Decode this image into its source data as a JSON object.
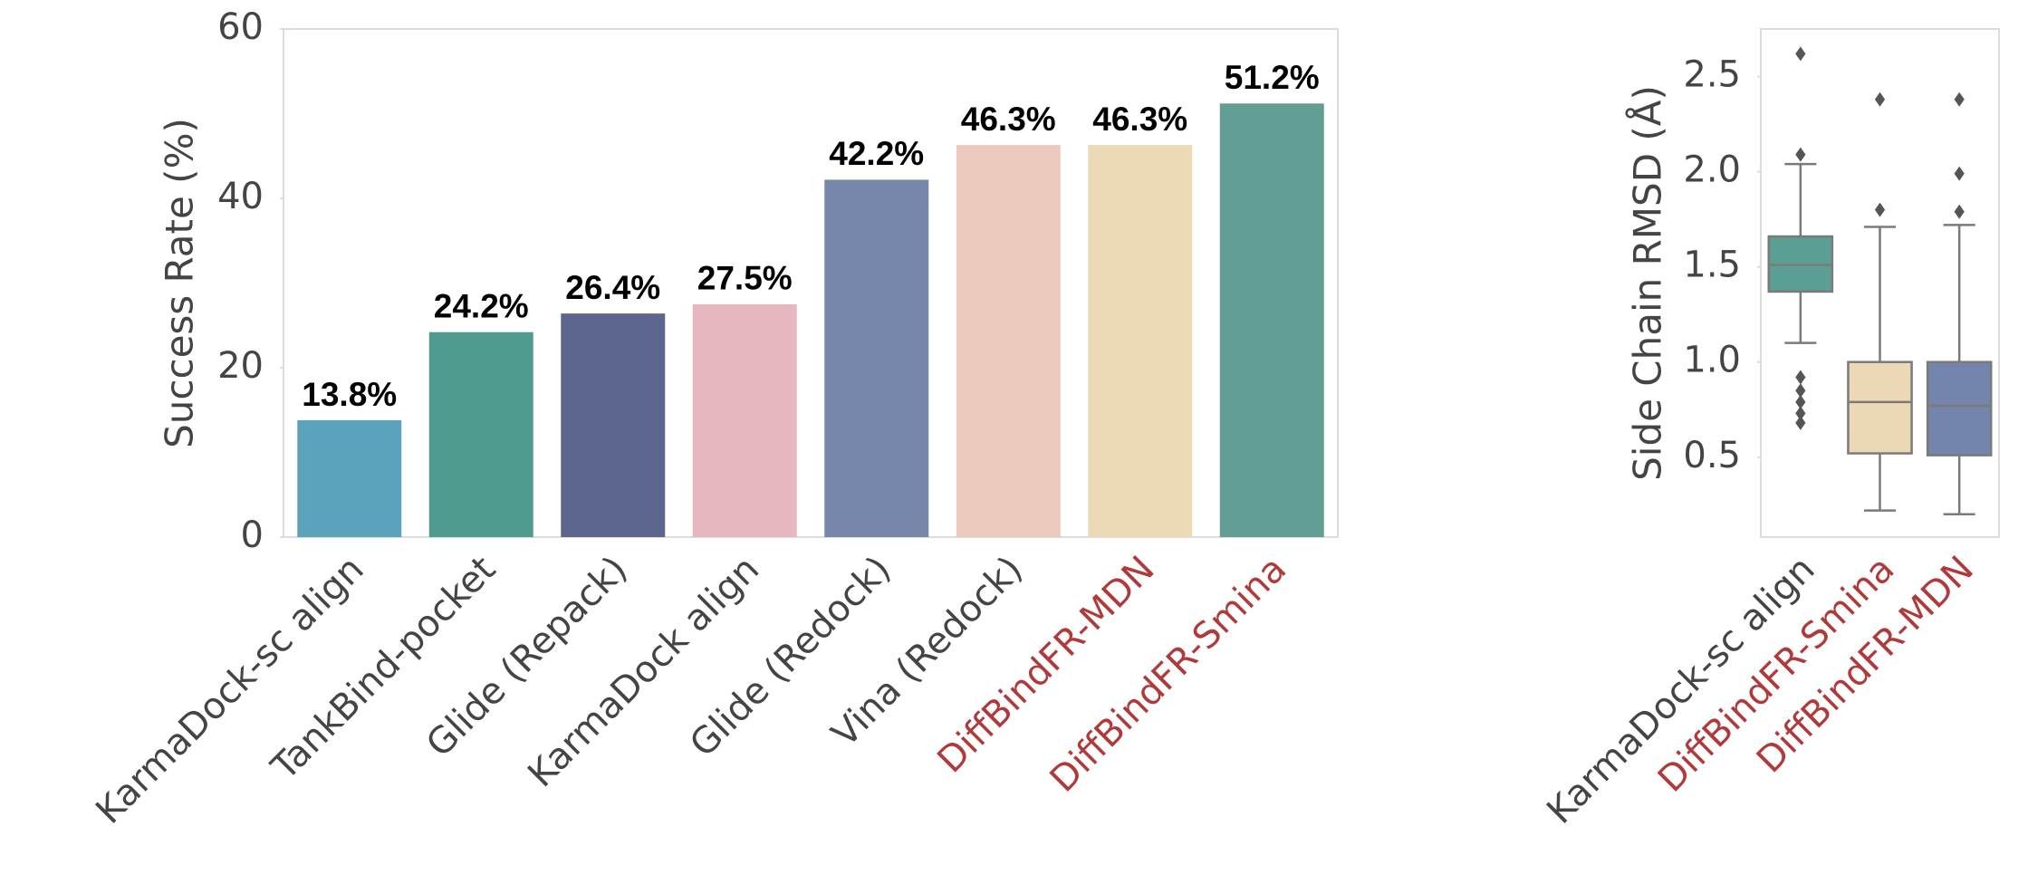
{
  "chart_data": [
    {
      "type": "bar",
      "ylabel": "Success Rate (%)",
      "categories": [
        "KarmaDock-sc align",
        "TankBind-pocket",
        "Glide (Repack)",
        "KarmaDock align",
        "Glide (Redock)",
        "Vina (Redock)",
        "DiffBindFR-MDN",
        "DiffBindFR-Smina"
      ],
      "values": [
        13.8,
        24.2,
        26.4,
        27.5,
        42.2,
        46.3,
        46.3,
        51.2
      ],
      "value_labels": [
        "13.8%",
        "24.2%",
        "26.4%",
        "27.5%",
        "42.2%",
        "46.3%",
        "46.3%",
        "51.2%"
      ],
      "colors": [
        "#5ba3bd",
        "#4f9b90",
        "#5c668f",
        "#e8b6bf",
        "#7787aa",
        "#ebc9bc",
        "#ecd9b6",
        "#629e94"
      ],
      "label_colors": [
        "#444444",
        "#444444",
        "#444444",
        "#444444",
        "#444444",
        "#444444",
        "#b03a3a",
        "#b03a3a"
      ],
      "ylim": [
        0,
        60
      ],
      "yticks": [
        0,
        20,
        40,
        60
      ]
    },
    {
      "type": "box",
      "ylabel": "Side Chain RMSD (Å)",
      "categories": [
        "KarmaDock-sc align",
        "DiffBindFR-Smina",
        "DiffBindFR-MDN"
      ],
      "colors": [
        "#5a9e94",
        "#ecd8b4",
        "#7384ad"
      ],
      "label_colors": [
        "#444444",
        "#b03a3a",
        "#b03a3a"
      ],
      "boxes": [
        {
          "whislo": 1.1,
          "q1": 1.37,
          "med": 1.51,
          "q3": 1.66,
          "whishi": 2.04,
          "fliers": [
            2.62,
            2.09,
            0.92,
            0.85,
            0.79,
            0.73,
            0.68
          ]
        },
        {
          "whislo": 0.22,
          "q1": 0.52,
          "med": 0.79,
          "q3": 1.0,
          "whishi": 1.71,
          "fliers": [
            2.38,
            1.8
          ]
        },
        {
          "whislo": 0.2,
          "q1": 0.51,
          "med": 0.77,
          "q3": 1.0,
          "whishi": 1.72,
          "fliers": [
            2.38,
            1.99,
            1.79
          ]
        }
      ],
      "ylim": [
        0.08,
        2.75
      ],
      "yticks": [
        0.5,
        {
          "value": 1,
          "label": "1.0"
        },
        1.5,
        {
          "value": 2,
          "label": "2.0"
        },
        2.5
      ]
    }
  ]
}
